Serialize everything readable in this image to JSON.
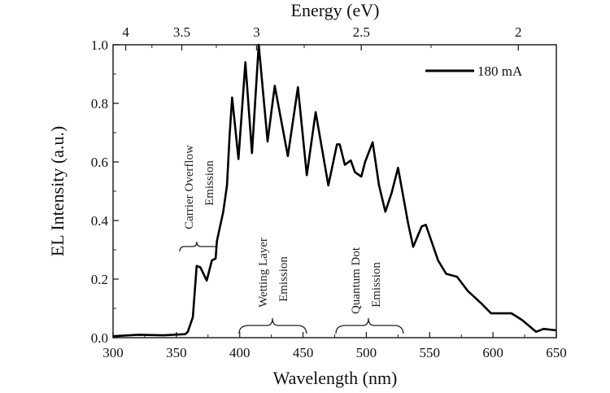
{
  "chart_data": {
    "type": "line",
    "xlabel": "Wavelength (nm)",
    "ylabel": "EL Intensity (a.u.)",
    "top_xlabel": "Energy (eV)",
    "xlim": [
      300,
      650
    ],
    "ylim": [
      0.0,
      1.0
    ],
    "xticks": [
      300,
      350,
      400,
      450,
      500,
      550,
      600,
      650
    ],
    "yticks": [
      "0.0",
      "0.2",
      "0.4",
      "0.6",
      "0.8",
      "1.0"
    ],
    "top_ticks": [
      "4",
      "3.5",
      "3",
      "2.5",
      "2"
    ],
    "grid": false,
    "legend_position": "top-right",
    "series": [
      {
        "name": "180 mA",
        "color": "#000000",
        "x": [
          300,
          320,
          340,
          357,
          359,
          363,
          366,
          369,
          374,
          378,
          381,
          382,
          387,
          390,
          392,
          394,
          399,
          404.5,
          409.7,
          415,
          422,
          427.7,
          438,
          446,
          453,
          460,
          470,
          476.8,
          479,
          483,
          487.7,
          491,
          496,
          499,
          505,
          510,
          515,
          520,
          525,
          533,
          537,
          543.7,
          547,
          556.6,
          563,
          571.6,
          580,
          591,
          598.5,
          614.6,
          623,
          634,
          640,
          650
        ],
        "y": [
          0.005,
          0.01,
          0.008,
          0.012,
          0.02,
          0.07,
          0.245,
          0.24,
          0.195,
          0.264,
          0.27,
          0.33,
          0.43,
          0.52,
          0.69,
          0.82,
          0.61,
          0.94,
          0.63,
          1.0,
          0.67,
          0.86,
          0.62,
          0.855,
          0.555,
          0.77,
          0.52,
          0.66,
          0.66,
          0.59,
          0.605,
          0.565,
          0.55,
          0.6,
          0.667,
          0.52,
          0.43,
          0.495,
          0.58,
          0.39,
          0.31,
          0.38,
          0.385,
          0.264,
          0.218,
          0.208,
          0.16,
          0.116,
          0.083,
          0.083,
          0.06,
          0.02,
          0.03,
          0.025
        ]
      }
    ],
    "annotations": [
      {
        "lines": [
          "Carrier Overflow",
          "Emission"
        ]
      },
      {
        "lines": [
          "Wetting Layer",
          "Emission"
        ]
      },
      {
        "lines": [
          "Quantum Dot",
          "Emission"
        ]
      }
    ]
  }
}
